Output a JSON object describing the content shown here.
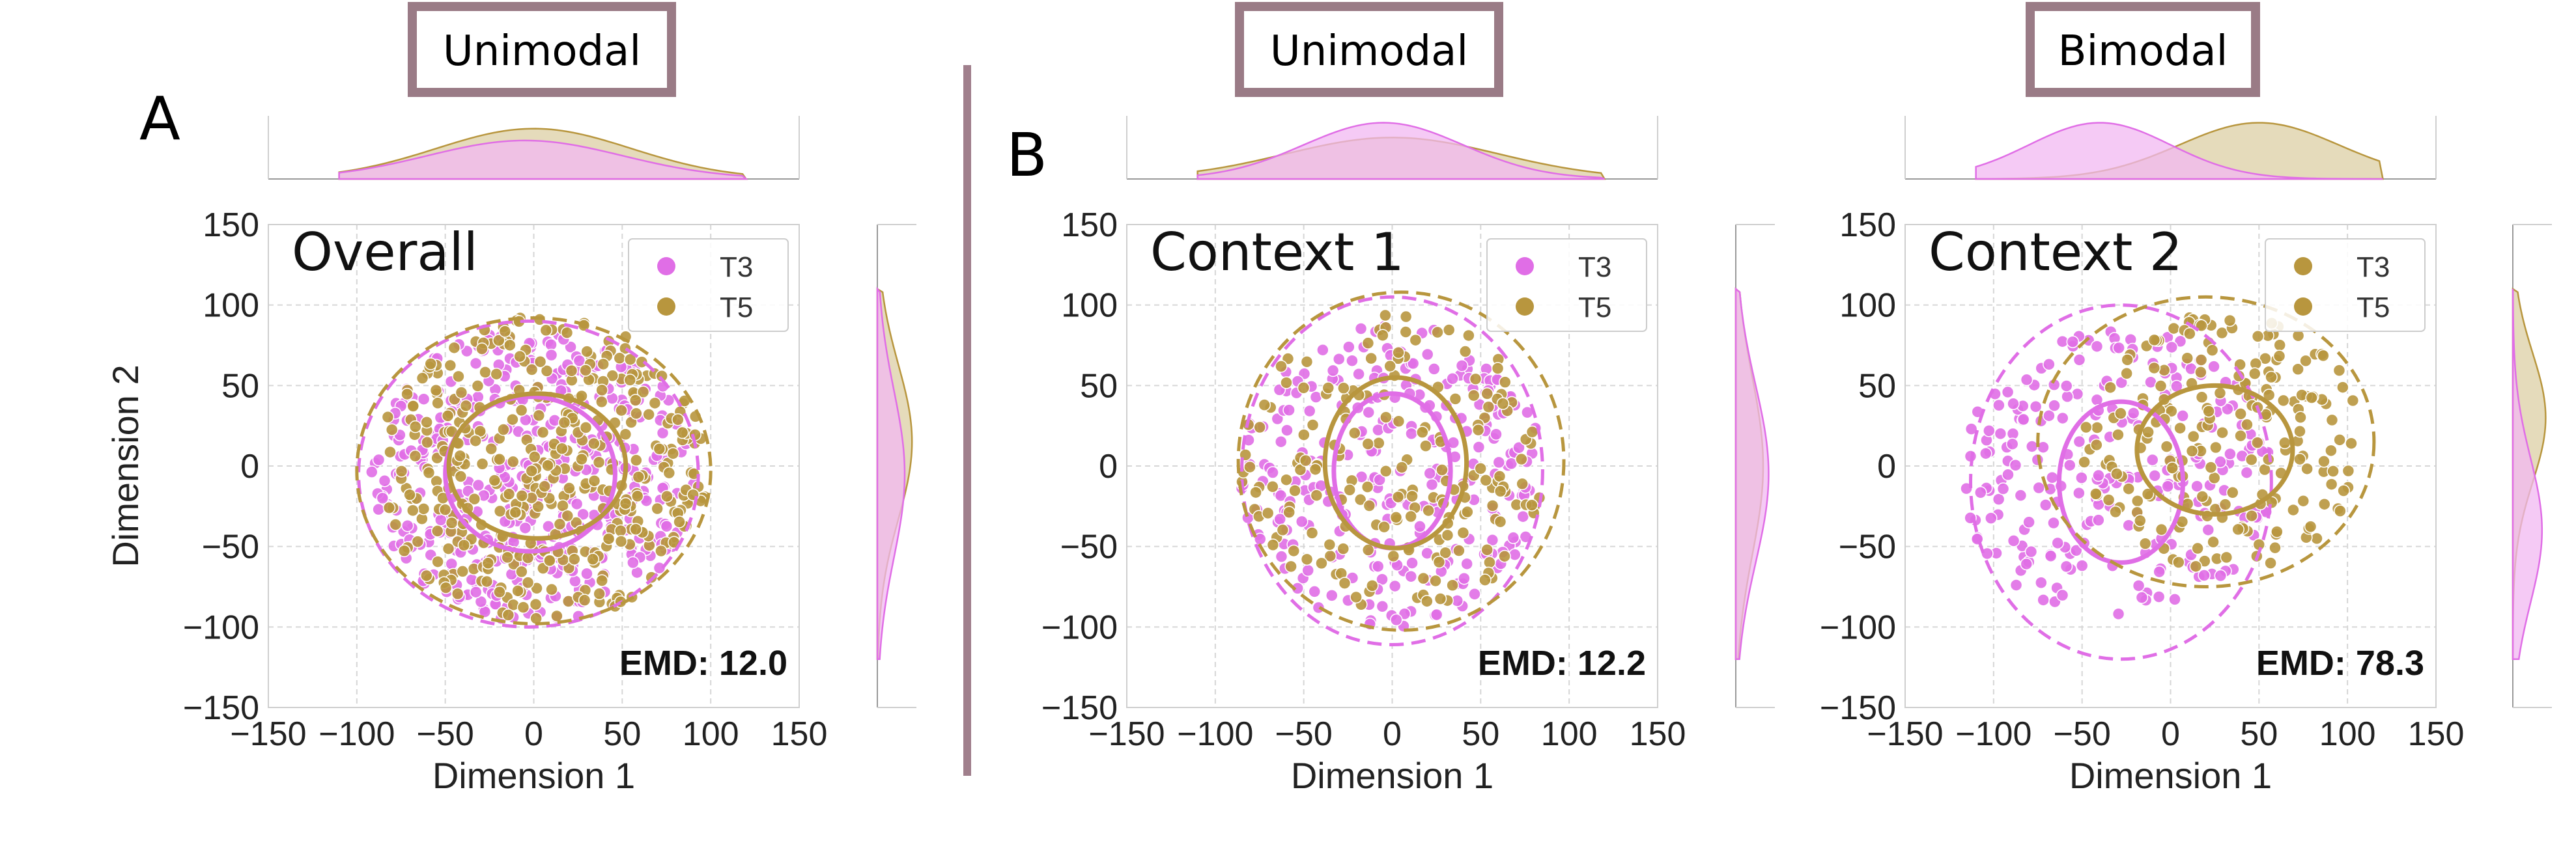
{
  "figure": {
    "panel_letters": [
      "A",
      "B"
    ],
    "divider_color": "#a07f8c"
  },
  "colors": {
    "t3": "#e06ee6",
    "t5": "#b8963e",
    "kde_t3_fill": "#f2b8f2",
    "kde_t5_fill": "#dccfa4",
    "overlap_fill": "#d1a2ac",
    "box_border": "#9a7b86",
    "grid": "#d6d6d6"
  },
  "chart_data": [
    {
      "type": "scatter",
      "mode_label": "Unimodal",
      "title": "Overall",
      "xlabel": "Dimension 1",
      "ylabel": "Dimension 2",
      "xlim": [
        -150,
        150
      ],
      "ylim": [
        -150,
        150
      ],
      "xticks": [
        -150,
        -100,
        -50,
        0,
        50,
        100,
        150
      ],
      "yticks": [
        -150,
        -100,
        -50,
        0,
        50,
        100,
        150
      ],
      "grid": true,
      "legend_position": "top-right",
      "emd_label": "EMD: 12.0",
      "series": [
        {
          "name": "T3",
          "shape": "filled ring",
          "center": [
            0,
            -5
          ],
          "inner_radius": 0,
          "outer_radius": 92,
          "count": 430,
          "ellipse_1sd": {
            "cx": -2,
            "cy": -5,
            "rx": 48,
            "ry": 48
          },
          "ellipse_2sd": {
            "cx": -3,
            "cy": -5,
            "rx": 96,
            "ry": 95
          }
        },
        {
          "name": "T5",
          "shape": "filled ring",
          "center": [
            5,
            -2
          ],
          "inner_radius": 0,
          "outer_radius": 95,
          "count": 420,
          "ellipse_1sd": {
            "cx": 2,
            "cy": 0,
            "rx": 50,
            "ry": 45
          },
          "ellipse_2sd": {
            "cx": 0,
            "cy": -3,
            "rx": 100,
            "ry": 95
          }
        }
      ],
      "x_marginal": {
        "T3": {
          "mean": -5,
          "sd": 55,
          "peak": 0.65
        },
        "T5": {
          "mean": 0,
          "sd": 55,
          "peak": 0.85
        }
      },
      "y_marginal": {
        "T3": {
          "mean": -5,
          "sd": 52,
          "peak": 0.75
        },
        "T5": {
          "mean": 15,
          "sd": 48,
          "peak": 0.95
        }
      }
    },
    {
      "type": "scatter",
      "mode_label": "Unimodal",
      "title": "Context 1",
      "xlabel": "Dimension 1",
      "ylabel": "",
      "xlim": [
        -150,
        150
      ],
      "ylim": [
        -150,
        150
      ],
      "xticks": [
        -150,
        -100,
        -50,
        0,
        50,
        100,
        150
      ],
      "yticks": [
        -150,
        -100,
        -50,
        0,
        50,
        100,
        150
      ],
      "grid": true,
      "legend_position": "top-right",
      "emd_label": "EMD: 12.2",
      "series": [
        {
          "name": "T3",
          "center": [
            0,
            -5
          ],
          "outer_radius": 95,
          "count": 260,
          "ellipse_1sd": {
            "cx": 0,
            "cy": -3,
            "rx": 33,
            "ry": 48
          },
          "ellipse_2sd": {
            "cx": 0,
            "cy": -3,
            "rx": 85,
            "ry": 108
          }
        },
        {
          "name": "T5",
          "center": [
            0,
            0
          ],
          "outer_radius": 95,
          "count": 190,
          "ellipse_1sd": {
            "cx": 2,
            "cy": 2,
            "rx": 40,
            "ry": 53
          },
          "ellipse_2sd": {
            "cx": 5,
            "cy": 3,
            "rx": 92,
            "ry": 105
          }
        }
      ],
      "x_marginal": {
        "T3": {
          "mean": -5,
          "sd": 45,
          "peak": 0.95
        },
        "T5": {
          "mean": 0,
          "sd": 60,
          "peak": 0.7
        }
      },
      "y_marginal": {
        "T3": {
          "mean": -5,
          "sd": 55,
          "peak": 0.9
        },
        "T5": {
          "mean": 0,
          "sd": 55,
          "peak": 0.75
        }
      }
    },
    {
      "type": "scatter",
      "mode_label": "Bimodal",
      "title": "Context 2",
      "xlabel": "Dimension 1",
      "ylabel": "",
      "xlim": [
        -150,
        150
      ],
      "ylim": [
        -150,
        150
      ],
      "xticks": [
        -150,
        -100,
        -50,
        0,
        50,
        100,
        150
      ],
      "yticks": [
        -150,
        -100,
        -50,
        0,
        50,
        100,
        150
      ],
      "grid": true,
      "legend_position": "top-right",
      "emd_label": "EMD: 78.3",
      "series": [
        {
          "name": "T3",
          "center": [
            -30,
            -5
          ],
          "outer_radius": 90,
          "count": 230,
          "ellipse_1sd": {
            "cx": -28,
            "cy": -10,
            "rx": 35,
            "ry": 50
          },
          "ellipse_2sd": {
            "cx": -28,
            "cy": -10,
            "rx": 85,
            "ry": 110
          }
        },
        {
          "name": "T5",
          "center": [
            30,
            15
          ],
          "outer_radius": 80,
          "count": 210,
          "ellipse_1sd": {
            "cx": 25,
            "cy": 10,
            "rx": 44,
            "ry": 40
          },
          "ellipse_2sd": {
            "cx": 20,
            "cy": 15,
            "rx": 95,
            "ry": 90
          }
        }
      ],
      "x_marginal": {
        "T3": {
          "mean": -40,
          "sd": 40,
          "peak": 0.95
        },
        "T5": {
          "mean": 50,
          "sd": 45,
          "peak": 0.95
        }
      },
      "y_marginal": {
        "T3": {
          "mean": -40,
          "sd": 45,
          "peak": 0.8
        },
        "T5": {
          "mean": 30,
          "sd": 40,
          "peak": 0.9
        }
      }
    }
  ]
}
